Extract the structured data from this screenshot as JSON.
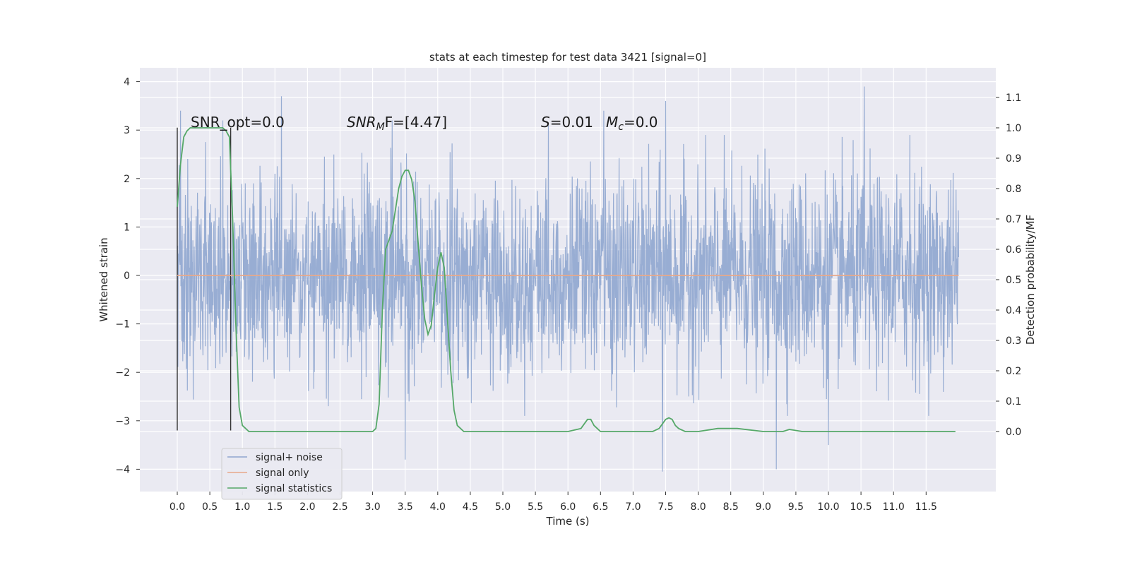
{
  "chart_data": {
    "type": "line",
    "title": "stats at each timestep for test data 3421 [signal=0]",
    "xlabel": "Time (s)",
    "ylabel_left": "Whitened strain",
    "ylabel_right": "Detection probability/MF",
    "xlim": [
      -0.6,
      12.6
    ],
    "ylim_left": [
      -4.5,
      4.3
    ],
    "ylim_right": [
      -0.2,
      1.2
    ],
    "x_ticks": [
      "0.0",
      "0.5",
      "1.0",
      "1.5",
      "2.0",
      "2.5",
      "3.0",
      "3.5",
      "4.0",
      "4.5",
      "5.0",
      "5.5",
      "6.0",
      "6.5",
      "7.0",
      "7.5",
      "8.0",
      "8.5",
      "9.0",
      "9.5",
      "10.0",
      "10.5",
      "11.0",
      "11.5"
    ],
    "y_left_ticks": [
      "4",
      "3",
      "2",
      "1",
      "0",
      "−1",
      "−2",
      "−3",
      "−4"
    ],
    "y_right_ticks": [
      "1.1",
      "1.0",
      "0.9",
      "0.8",
      "0.7",
      "0.6",
      "0.5",
      "0.4",
      "0.3",
      "0.2",
      "0.1",
      "0.0"
    ],
    "grid": true,
    "legend_position": "lower-left",
    "annotations": {
      "snr_opt": "SNR_opt=0.0",
      "snr_mf_main": "SNR",
      "snr_mf_sub": "M",
      "snr_mf_rest": "F=[4.47]",
      "s_label": "S",
      "s_value": "=0.01",
      "mc_main": "M",
      "mc_sub": "c",
      "mc_value": "=0.0"
    },
    "series": [
      {
        "name": "signal+ noise",
        "color": "#8fa6cf",
        "axis": "left",
        "description_points": "whitened strain noise, roughly within ±2 with spikes up to ±3.9",
        "x_range": [
          0.0,
          12.0
        ],
        "peaks": [
          [
            0.05,
            3.4
          ],
          [
            0.7,
            3.2
          ],
          [
            1.6,
            3.7
          ],
          [
            3.3,
            3.2
          ],
          [
            5.7,
            3.1
          ],
          [
            6.55,
            3.4
          ],
          [
            7.5,
            3.6
          ],
          [
            10.55,
            3.9
          ],
          [
            11.25,
            2.9
          ],
          [
            3.5,
            -3.8
          ],
          [
            7.45,
            -4.05
          ],
          [
            9.2,
            -4.0
          ],
          [
            10.0,
            -3.5
          ]
        ]
      },
      {
        "name": "signal only",
        "color": "#e8a88a",
        "axis": "left",
        "x": [
          0.0,
          12.0
        ],
        "y": [
          0.0,
          0.0
        ]
      },
      {
        "name": "signal statistics",
        "color": "#55a868",
        "axis": "right",
        "x": [
          0.0,
          0.05,
          0.1,
          0.15,
          0.2,
          0.3,
          0.4,
          0.5,
          0.6,
          0.7,
          0.75,
          0.8,
          0.85,
          0.9,
          0.95,
          1.0,
          1.05,
          1.1,
          1.2,
          1.5,
          2.0,
          2.5,
          3.0,
          3.05,
          3.1,
          3.15,
          3.2,
          3.25,
          3.3,
          3.35,
          3.4,
          3.45,
          3.5,
          3.55,
          3.6,
          3.65,
          3.7,
          3.75,
          3.8,
          3.85,
          3.9,
          3.95,
          4.0,
          4.05,
          4.1,
          4.15,
          4.2,
          4.25,
          4.3,
          4.35,
          4.4,
          4.45,
          4.5,
          4.55,
          4.6,
          4.7,
          4.8,
          5.0,
          5.5,
          6.0,
          6.2,
          6.3,
          6.35,
          6.4,
          6.45,
          6.5,
          6.6,
          6.8,
          7.0,
          7.3,
          7.4,
          7.5,
          7.55,
          7.6,
          7.65,
          7.7,
          7.8,
          8.0,
          8.3,
          8.6,
          9.0,
          9.3,
          9.4,
          9.6,
          10.0,
          11.0,
          11.5,
          11.95
        ],
        "y": [
          0.74,
          0.88,
          0.97,
          0.99,
          1.0,
          1.0,
          1.0,
          1.0,
          1.0,
          1.0,
          0.99,
          0.97,
          0.7,
          0.35,
          0.08,
          0.02,
          0.01,
          0.0,
          0.0,
          0.0,
          0.0,
          0.0,
          0.0,
          0.01,
          0.09,
          0.4,
          0.6,
          0.63,
          0.66,
          0.73,
          0.8,
          0.84,
          0.86,
          0.86,
          0.83,
          0.76,
          0.62,
          0.48,
          0.37,
          0.32,
          0.35,
          0.45,
          0.54,
          0.59,
          0.54,
          0.37,
          0.2,
          0.07,
          0.02,
          0.01,
          0.0,
          0.0,
          0.0,
          0.0,
          0.0,
          0.0,
          0.0,
          0.0,
          0.0,
          0.0,
          0.01,
          0.04,
          0.04,
          0.02,
          0.01,
          0.0,
          0.0,
          0.0,
          0.0,
          0.0,
          0.01,
          0.04,
          0.045,
          0.04,
          0.02,
          0.01,
          0.0,
          0.0,
          0.01,
          0.01,
          0.0,
          0.0,
          0.007,
          0.0,
          0.0,
          0.0,
          0.0,
          0.0
        ]
      }
    ],
    "vertical_markers": [
      0.0,
      0.82
    ]
  }
}
